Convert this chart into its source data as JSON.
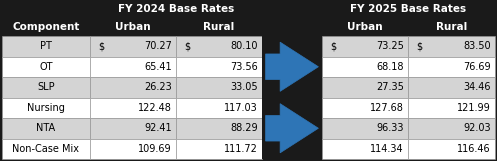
{
  "title_2024": "FY 2024 Base Rates",
  "title_2025": "FY 2025 Base Rates",
  "col_header_component": "Component",
  "col_header_urban": "Urban",
  "col_header_rural": "Rural",
  "components": [
    "PT",
    "OT",
    "SLP",
    "Nursing",
    "NTA",
    "Non-Case Mix"
  ],
  "urban_2024": [
    "70.27",
    "65.41",
    "26.23",
    "122.48",
    "92.41",
    "109.69"
  ],
  "rural_2024": [
    "80.10",
    "73.56",
    "33.05",
    "117.03",
    "88.29",
    "111.72"
  ],
  "urban_2025": [
    "73.25",
    "68.18",
    "27.35",
    "127.68",
    "96.33",
    "114.34"
  ],
  "rural_2025": [
    "83.50",
    "76.69",
    "34.46",
    "121.99",
    "92.03",
    "116.46"
  ],
  "arrow_rows": [
    0,
    3
  ],
  "bg_color": "#1a1a1a",
  "table_bg_light": "#d4d4d4",
  "table_bg_white": "#ffffff",
  "header_text": "#ffffff",
  "arrow_color": "#2e75b6",
  "cell_text_color": "#000000",
  "row_colors": [
    "#d4d4d4",
    "#ffffff",
    "#d4d4d4",
    "#ffffff",
    "#d4d4d4",
    "#ffffff"
  ],
  "border_color": "#999999",
  "title_fontsize": 7.5,
  "header_fontsize": 7.5,
  "cell_fontsize": 7.0
}
